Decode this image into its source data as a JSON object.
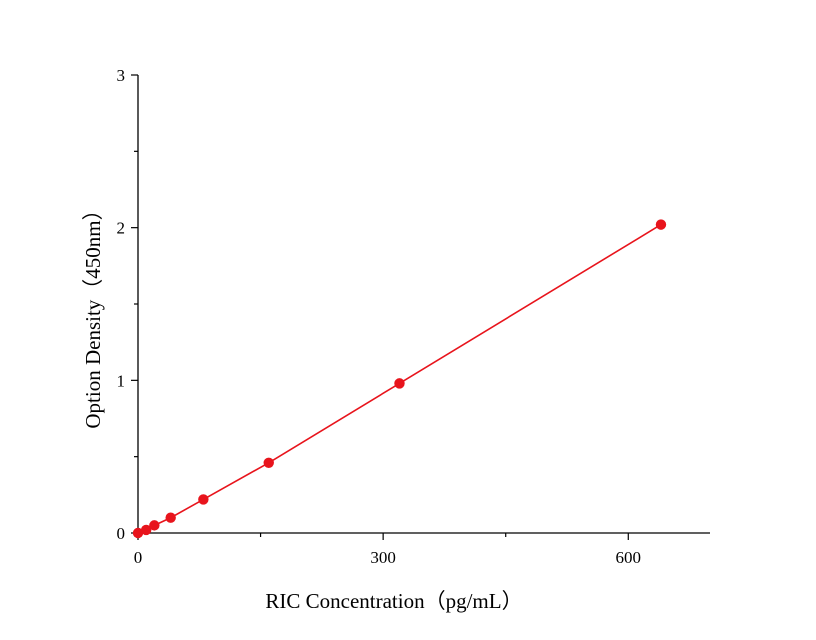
{
  "chart_data": {
    "type": "scatter",
    "title": "",
    "xlabel": "RIC Concentration（pg/mL）",
    "ylabel": "Option Density（450nm）",
    "xlim": [
      0,
      700
    ],
    "ylim": [
      0,
      3
    ],
    "x_ticks": [
      0,
      300,
      600
    ],
    "y_ticks": [
      0,
      1,
      2,
      3
    ],
    "grid": false,
    "legend": "none",
    "series": [
      {
        "color": "#e8141c",
        "fit": "linear",
        "points": [
          {
            "x": 0,
            "y": 0.0
          },
          {
            "x": 10,
            "y": 0.02
          },
          {
            "x": 20,
            "y": 0.05
          },
          {
            "x": 40,
            "y": 0.1
          },
          {
            "x": 80,
            "y": 0.22
          },
          {
            "x": 160,
            "y": 0.46
          },
          {
            "x": 320,
            "y": 0.98
          },
          {
            "x": 640,
            "y": 2.02
          }
        ]
      }
    ]
  }
}
